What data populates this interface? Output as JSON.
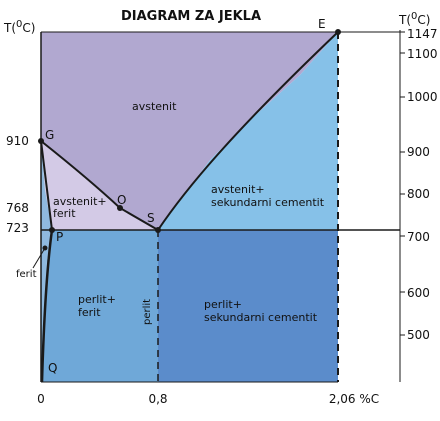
{
  "title": "DIAGRAM ZA JEKLA",
  "left_axis": {
    "label_prefix": "T(",
    "label_sup": "0",
    "label_suffix": "C)",
    "ticks": [
      "910",
      "768",
      "723"
    ]
  },
  "right_axis": {
    "label_prefix": "T(",
    "label_sup": "0",
    "label_suffix": "C)",
    "ticks": [
      "1147",
      "1100",
      "1000",
      "900",
      "800",
      "700",
      "600",
      "500"
    ]
  },
  "bottom_axis": {
    "ticks": [
      "0",
      "0,8",
      "2,06 %C"
    ]
  },
  "points": {
    "G": "G",
    "E": "E",
    "O": "O",
    "S": "S",
    "P": "P",
    "Q": "Q"
  },
  "regions": {
    "austenite": "avstenit",
    "austenite_ferrite_line1": "avstenit+",
    "austenite_ferrite_line2": "ferit",
    "austenite_cementite_line1": "avstenit+",
    "austenite_cementite_line2": "sekundarni cementit",
    "ferrite": "ferit",
    "pearlite_ferrite_line1": "perlit+",
    "pearlite_ferrite_line2": "ferit",
    "pearlite": "perlit",
    "pearlite_cementite_line1": "perlit+",
    "pearlite_cementite_line2": "sekundarni cementit"
  },
  "colors": {
    "austenite": "#b1a8d0",
    "austenite_ferrite": "#d3cae6",
    "austenite_cementite": "#86c1e8",
    "pearlite_ferrite": "#6fa8d8",
    "pearlite_cementite": "#5b8ccb",
    "line": "#1a1a1a"
  }
}
